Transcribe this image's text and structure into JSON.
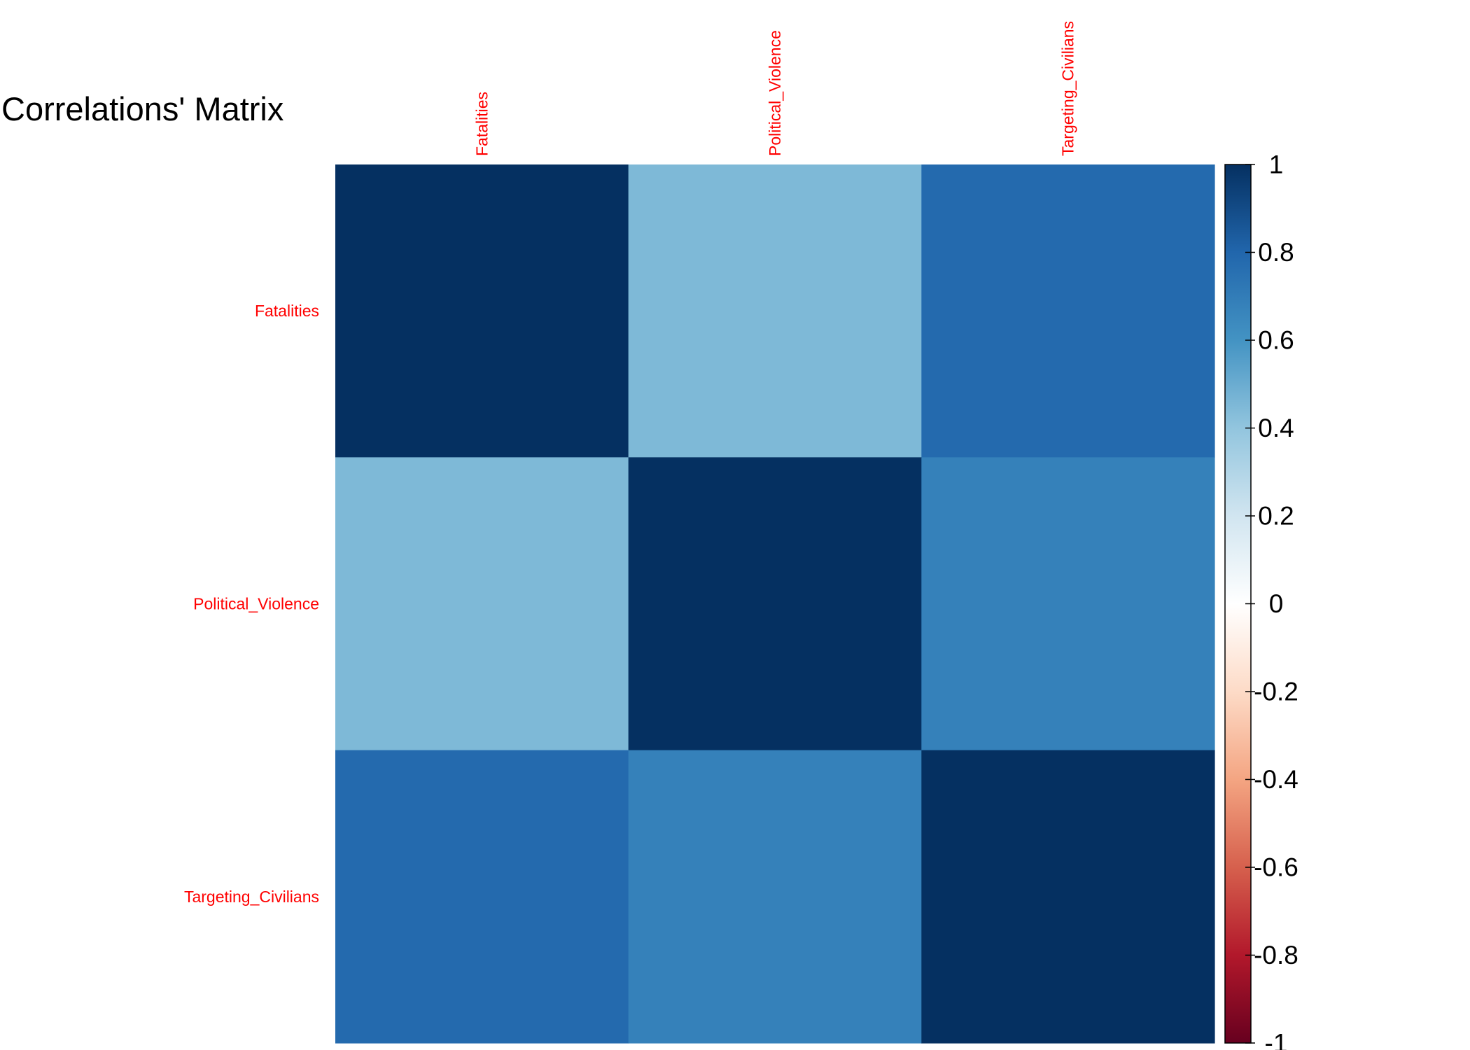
{
  "chart_data": {
    "type": "heatmap",
    "title": "Correlations' Matrix",
    "variables": [
      "Fatalities",
      "Political_Violence",
      "Targeting_Civilians"
    ],
    "matrix": [
      [
        1.0,
        0.45,
        0.78
      ],
      [
        0.45,
        1.0,
        0.68
      ],
      [
        0.78,
        0.68,
        1.0
      ]
    ],
    "label_color": "#FF0000",
    "color_scale": {
      "min": -1,
      "max": 1,
      "ticks": [
        1,
        0.8,
        0.6,
        0.4,
        0.2,
        0,
        -0.2,
        -0.4,
        -0.6,
        -0.8,
        -1
      ],
      "tick_labels": [
        "1",
        "0.8",
        "0.6",
        "0.4",
        "0.2",
        "0",
        "-0.2",
        "-0.4",
        "-0.6",
        "-0.8",
        "-1"
      ],
      "palette": [
        "#67001F",
        "#B2182B",
        "#D6604D",
        "#F4A582",
        "#FDDBC7",
        "#FFFFFF",
        "#D1E5F0",
        "#92C5DE",
        "#4393C3",
        "#2166AC",
        "#053061"
      ]
    }
  }
}
